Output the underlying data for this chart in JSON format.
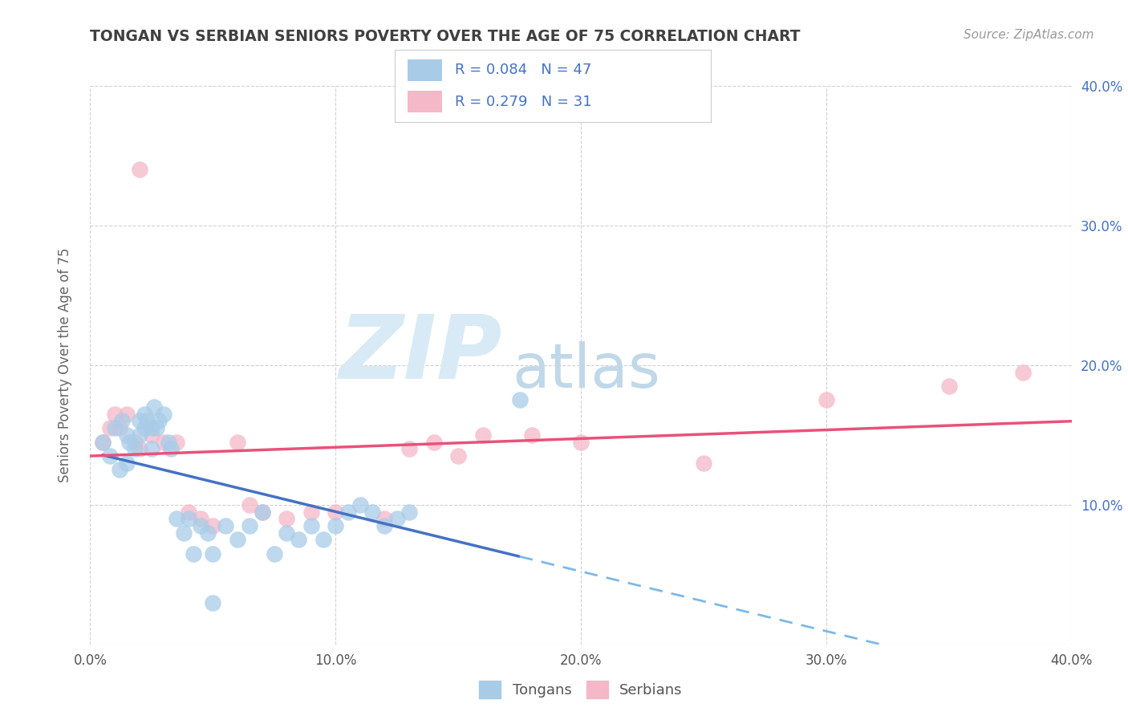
{
  "title": "TONGAN VS SERBIAN SENIORS POVERTY OVER THE AGE OF 75 CORRELATION CHART",
  "source": "Source: ZipAtlas.com",
  "ylabel": "Seniors Poverty Over the Age of 75",
  "xlim": [
    0.0,
    0.4
  ],
  "ylim": [
    0.0,
    0.4
  ],
  "xticks": [
    0.0,
    0.1,
    0.2,
    0.3,
    0.4
  ],
  "yticks": [
    0.0,
    0.1,
    0.2,
    0.3,
    0.4
  ],
  "xticklabels": [
    "0.0%",
    "10.0%",
    "20.0%",
    "30.0%",
    "40.0%"
  ],
  "right_yticklabels": [
    "",
    "10.0%",
    "20.0%",
    "30.0%",
    "40.0%"
  ],
  "legend_labels": [
    "Tongans",
    "Serbians"
  ],
  "r_tongans": 0.084,
  "n_tongans": 47,
  "r_serbians": 0.279,
  "n_serbians": 31,
  "color_tongans": "#a8cce8",
  "color_serbians": "#f4b8c8",
  "line_color_tongans": "#4472c4",
  "line_color_serbians": "#e8527a",
  "dashed_line_color": "#7eb8e8",
  "legend_text_color": "#4472c4",
  "title_color": "#404040",
  "watermark_zip": "ZIP",
  "watermark_atlas": "atlas",
  "watermark_color_zip": "#d8eaf6",
  "watermark_color_atlas": "#c0d8e8",
  "background_color": "#ffffff",
  "grid_color": "#cccccc",
  "tongans_x": [
    0.005,
    0.008,
    0.01,
    0.012,
    0.013,
    0.015,
    0.015,
    0.016,
    0.018,
    0.02,
    0.02,
    0.022,
    0.022,
    0.023,
    0.025,
    0.025,
    0.026,
    0.027,
    0.028,
    0.03,
    0.032,
    0.033,
    0.035,
    0.038,
    0.04,
    0.042,
    0.045,
    0.048,
    0.05,
    0.055,
    0.06,
    0.065,
    0.07,
    0.075,
    0.08,
    0.085,
    0.09,
    0.095,
    0.1,
    0.105,
    0.11,
    0.115,
    0.12,
    0.125,
    0.13,
    0.175,
    0.05
  ],
  "tongans_y": [
    0.145,
    0.135,
    0.155,
    0.125,
    0.16,
    0.13,
    0.15,
    0.145,
    0.14,
    0.15,
    0.16,
    0.165,
    0.155,
    0.16,
    0.14,
    0.155,
    0.17,
    0.155,
    0.16,
    0.165,
    0.145,
    0.14,
    0.09,
    0.08,
    0.09,
    0.065,
    0.085,
    0.08,
    0.065,
    0.085,
    0.075,
    0.085,
    0.095,
    0.065,
    0.08,
    0.075,
    0.085,
    0.075,
    0.085,
    0.095,
    0.1,
    0.095,
    0.085,
    0.09,
    0.095,
    0.175,
    0.03
  ],
  "serbians_x": [
    0.005,
    0.008,
    0.01,
    0.012,
    0.015,
    0.018,
    0.02,
    0.025,
    0.03,
    0.035,
    0.04,
    0.045,
    0.05,
    0.06,
    0.065,
    0.07,
    0.08,
    0.09,
    0.1,
    0.12,
    0.13,
    0.14,
    0.15,
    0.16,
    0.18,
    0.2,
    0.25,
    0.3,
    0.35,
    0.38,
    0.02
  ],
  "serbians_y": [
    0.145,
    0.155,
    0.165,
    0.155,
    0.165,
    0.145,
    0.14,
    0.15,
    0.145,
    0.145,
    0.095,
    0.09,
    0.085,
    0.145,
    0.1,
    0.095,
    0.09,
    0.095,
    0.095,
    0.09,
    0.14,
    0.145,
    0.135,
    0.15,
    0.15,
    0.145,
    0.13,
    0.175,
    0.185,
    0.195,
    0.34
  ]
}
